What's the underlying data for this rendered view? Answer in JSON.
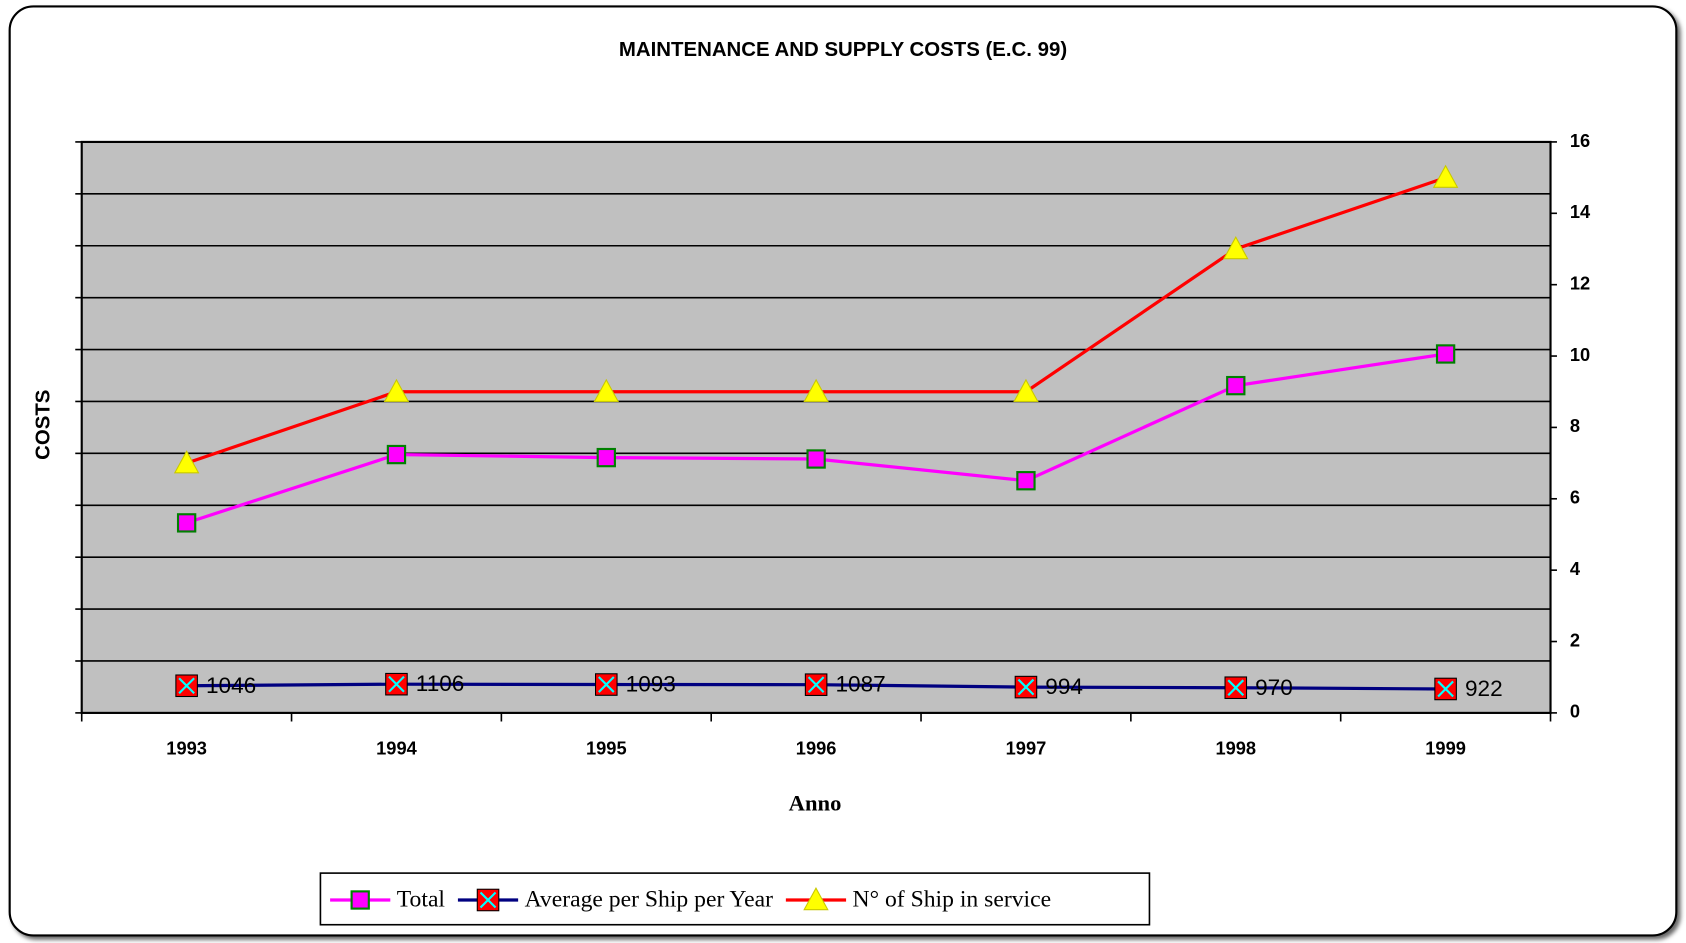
{
  "chart_data": {
    "type": "line",
    "title": "MAINTENANCE AND SUPPLY COSTS (E.C. 99)",
    "ylabel": "COSTS",
    "xlabel": "Anno",
    "categories": [
      "1993",
      "1994",
      "1995",
      "1996",
      "1997",
      "1998",
      "1999"
    ],
    "series": [
      {
        "name": "Total",
        "color": "#ff00ff",
        "marker": "square",
        "axis": "y",
        "values": [
          7322,
          9954,
          9837,
          9783,
          8946,
          12610,
          13830
        ]
      },
      {
        "name": "Average per Ship per Year",
        "color": "#000080",
        "marker": "x-square",
        "axis": "y",
        "show_values": true,
        "values": [
          1046,
          1106,
          1093,
          1087,
          994,
          970,
          922
        ]
      },
      {
        "name": "N° of Ship in service",
        "color": "#ff0000",
        "marker": "triangle",
        "axis": "y2",
        "values": [
          7,
          9,
          9,
          9,
          9,
          13,
          15
        ]
      }
    ],
    "ylim": [
      0,
      22000
    ],
    "yticks": [
      0,
      2000,
      4000,
      6000,
      8000,
      10000,
      12000,
      14000,
      16000,
      18000,
      20000,
      22000
    ],
    "y2lim": [
      0,
      16
    ],
    "y2ticks": [
      0,
      2,
      4,
      6,
      8,
      10,
      12,
      14,
      16
    ],
    "grid": true,
    "legend": "bottom"
  }
}
